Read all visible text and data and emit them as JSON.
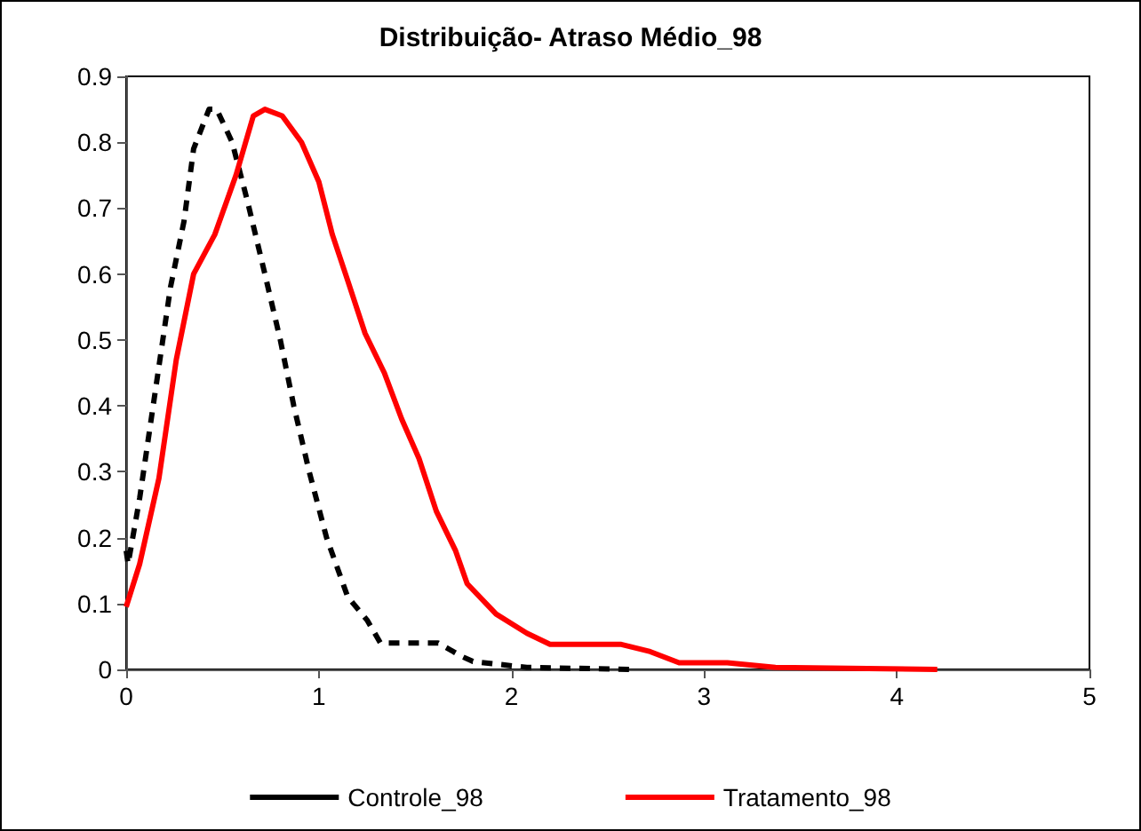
{
  "chart_data": {
    "type": "line",
    "title": "Distribuição- Atraso Médio_98",
    "xlim": [
      0,
      5
    ],
    "xticks": [
      0,
      1,
      2,
      3,
      4,
      5
    ],
    "ylim": [
      0,
      0.9
    ],
    "yticks": [
      0,
      0.1,
      0.2,
      0.3,
      0.4,
      0.5,
      0.6,
      0.7,
      0.8,
      0.9
    ],
    "grid": false,
    "legend": "bottom",
    "marker": "none",
    "series": [
      {
        "name": "Controle_98",
        "color": "#000000",
        "line_style": "dashed",
        "x": [
          0,
          0.01,
          0.07,
          0.12,
          0.17,
          0.23,
          0.3,
          0.35,
          0.43,
          0.47,
          0.55,
          0.63,
          0.72,
          0.8,
          0.87,
          0.95,
          1.04,
          1.15,
          1.25,
          1.32,
          1.55,
          1.62,
          1.74,
          1.8,
          2.08,
          2.63
        ],
        "values": [
          0.18,
          0.16,
          0.26,
          0.36,
          0.46,
          0.58,
          0.68,
          0.79,
          0.85,
          0.85,
          0.8,
          0.71,
          0.6,
          0.5,
          0.4,
          0.3,
          0.2,
          0.11,
          0.075,
          0.04,
          0.04,
          0.04,
          0.02,
          0.012,
          0.003,
          0
        ]
      },
      {
        "name": "Tratamento_98",
        "color": "#ff0000",
        "line_style": "solid",
        "x": [
          0,
          0.07,
          0.17,
          0.26,
          0.35,
          0.46,
          0.57,
          0.66,
          0.72,
          0.81,
          0.91,
          1,
          1.07,
          1.15,
          1.24,
          1.34,
          1.43,
          1.52,
          1.61,
          1.71,
          1.77,
          1.92,
          2.08,
          2.2,
          2.57,
          2.72,
          2.87,
          3.12,
          3.37,
          4.21
        ],
        "values": [
          0.095,
          0.16,
          0.29,
          0.47,
          0.6,
          0.66,
          0.75,
          0.84,
          0.85,
          0.84,
          0.8,
          0.74,
          0.66,
          0.59,
          0.51,
          0.45,
          0.38,
          0.32,
          0.24,
          0.18,
          0.13,
          0.084,
          0.055,
          0.038,
          0.038,
          0.027,
          0.01,
          0.01,
          0.003,
          0
        ]
      }
    ]
  }
}
